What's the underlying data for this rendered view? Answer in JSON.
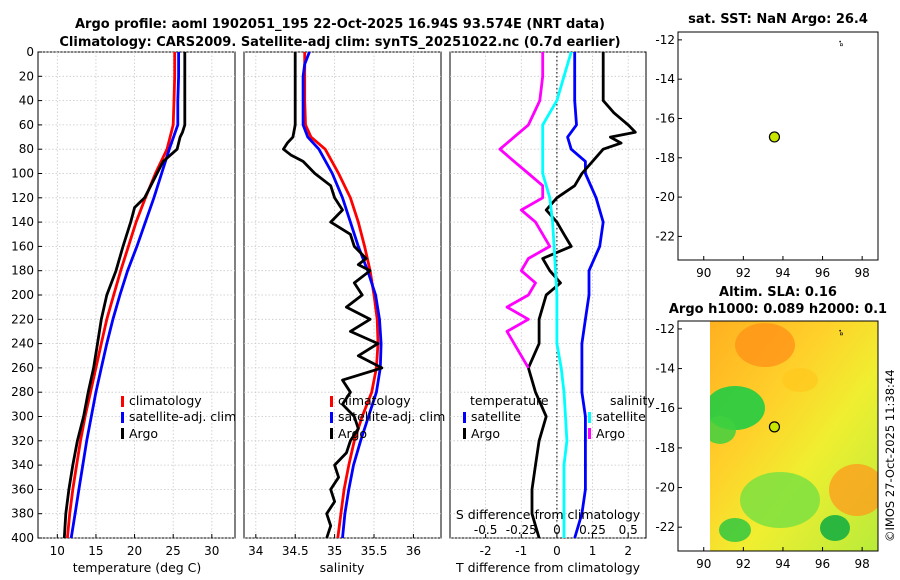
{
  "header": {
    "line1": "Argo profile: aoml 1902051_195 22-Oct-2025 16.94S 93.574E (NRT data)",
    "line2": "Climatology: CARS2009. Satellite-adj clim: synTS_20251022.nc (0.7d earlier)"
  },
  "colors": {
    "climatology": "#ff0000",
    "satellite": "#0000ff",
    "argo": "#000000",
    "sat_salinity": "#00ffff",
    "argo_salinity": "#ff00ff",
    "marker": "#c8e600"
  },
  "chart_data": [
    {
      "type": "line",
      "id": "temperature",
      "xlabel": "temperature (deg C)",
      "ylabel": "",
      "xlim": [
        7.5,
        33
      ],
      "ylim": [
        400,
        0
      ],
      "xticks": [
        "10",
        "15",
        "20",
        "25",
        "30"
      ],
      "xtick_values": [
        10,
        15,
        20,
        25,
        30
      ],
      "yticks": [
        "0",
        "20",
        "40",
        "60",
        "80",
        "100",
        "120",
        "140",
        "160",
        "180",
        "200",
        "220",
        "240",
        "260",
        "280",
        "300",
        "320",
        "340",
        "360",
        "380",
        "400"
      ],
      "ytick_values": [
        0,
        20,
        40,
        60,
        80,
        100,
        120,
        140,
        160,
        180,
        200,
        220,
        240,
        260,
        280,
        300,
        320,
        340,
        360,
        380,
        400
      ],
      "legend": [
        "climatology",
        "satellite-adj. clim",
        "Argo"
      ],
      "series": [
        {
          "name": "climatology",
          "color": "#ff0000",
          "depth": [
            0,
            20,
            40,
            60,
            80,
            100,
            120,
            140,
            160,
            180,
            200,
            220,
            240,
            260,
            280,
            300,
            320,
            340,
            360,
            380,
            400
          ],
          "values": [
            25.2,
            25.2,
            25.1,
            25.0,
            24.2,
            22.7,
            21.4,
            20.2,
            19.2,
            18.2,
            17.3,
            16.4,
            15.7,
            15.0,
            14.3,
            13.6,
            13.0,
            12.5,
            12.0,
            11.6,
            11.3
          ]
        },
        {
          "name": "satellite-adj. clim",
          "color": "#0000ff",
          "depth": [
            0,
            20,
            40,
            60,
            80,
            100,
            120,
            140,
            160,
            180,
            200,
            220,
            240,
            260,
            280,
            300,
            320,
            340,
            360,
            380,
            400
          ],
          "values": [
            25.7,
            25.7,
            25.6,
            25.6,
            24.5,
            23.5,
            22.5,
            21.4,
            20.3,
            19.1,
            18.1,
            17.2,
            16.4,
            15.7,
            15.0,
            14.4,
            13.8,
            13.3,
            12.8,
            12.3,
            11.8
          ]
        },
        {
          "name": "Argo",
          "color": "#000000",
          "depth": [
            0,
            20,
            40,
            60,
            66,
            70,
            80,
            90,
            100,
            110,
            120,
            128,
            140,
            160,
            180,
            200,
            220,
            240,
            260,
            280,
            300,
            320,
            340,
            360,
            380,
            400
          ],
          "values": [
            26.5,
            26.5,
            26.5,
            26.5,
            26.2,
            25.9,
            25.5,
            23.7,
            22.9,
            22.1,
            21.3,
            20.0,
            19.5,
            18.5,
            17.6,
            16.4,
            15.7,
            15.2,
            14.7,
            14.0,
            13.4,
            12.6,
            12.0,
            11.5,
            11.1,
            10.9
          ]
        }
      ]
    },
    {
      "type": "line",
      "id": "salinity",
      "xlabel": "salinity",
      "ylabel": "",
      "xlim": [
        33.85,
        36.35
      ],
      "ylim": [
        400,
        0
      ],
      "xticks": [
        "34",
        "34.5",
        "35",
        "35.5",
        "36"
      ],
      "xtick_values": [
        34,
        34.5,
        35,
        35.5,
        36
      ],
      "legend": [
        "climatology",
        "satellite-adj. clim",
        "Argo"
      ],
      "series": [
        {
          "name": "climatology",
          "color": "#ff0000",
          "depth": [
            0,
            20,
            40,
            60,
            70,
            80,
            100,
            120,
            140,
            160,
            180,
            200,
            220,
            240,
            260,
            280,
            300,
            320,
            340,
            360,
            380,
            400
          ],
          "values": [
            34.62,
            34.62,
            34.62,
            34.63,
            34.7,
            34.88,
            35.05,
            35.2,
            35.3,
            35.38,
            35.45,
            35.5,
            35.54,
            35.55,
            35.53,
            35.47,
            35.35,
            35.25,
            35.18,
            35.12,
            35.08,
            35.04
          ]
        },
        {
          "name": "satellite-adj. clim",
          "color": "#0000ff",
          "depth": [
            0,
            10,
            20,
            40,
            60,
            70,
            80,
            100,
            120,
            140,
            160,
            180,
            200,
            220,
            240,
            260,
            280,
            300,
            320,
            340,
            360,
            380,
            400
          ],
          "values": [
            34.68,
            34.62,
            34.6,
            34.6,
            34.6,
            34.66,
            34.8,
            34.97,
            35.1,
            35.2,
            35.3,
            35.42,
            35.52,
            35.57,
            35.59,
            35.58,
            35.53,
            35.43,
            35.33,
            35.24,
            35.18,
            35.13,
            35.1
          ]
        },
        {
          "name": "Argo",
          "color": "#000000",
          "depth": [
            0,
            20,
            40,
            60,
            70,
            75,
            80,
            85,
            90,
            100,
            110,
            120,
            130,
            140,
            150,
            160,
            170,
            175,
            180,
            190,
            200,
            210,
            220,
            230,
            240,
            250,
            260,
            270,
            280,
            290,
            300,
            310,
            320,
            330,
            340,
            350,
            360,
            370,
            380,
            390,
            400
          ],
          "values": [
            34.5,
            34.5,
            34.5,
            34.5,
            34.47,
            34.4,
            34.35,
            34.45,
            34.6,
            34.75,
            34.95,
            35.0,
            35.1,
            34.95,
            35.2,
            35.25,
            35.4,
            35.3,
            35.45,
            35.25,
            35.35,
            35.15,
            35.45,
            35.2,
            35.55,
            35.3,
            35.6,
            35.1,
            35.2,
            35.1,
            35.25,
            35.3,
            35.2,
            35.15,
            35.0,
            35.05,
            34.95,
            35.0,
            34.9,
            34.95,
            34.9
          ]
        }
      ]
    },
    {
      "type": "line",
      "id": "difference",
      "xlabel": "T difference from climatology",
      "xlabel_top": "S difference from climatology",
      "xlim": [
        -3,
        2.5
      ],
      "ylim": [
        400,
        0
      ],
      "xticks": [
        "-2",
        "-1",
        "0",
        "1",
        "2"
      ],
      "xtick_values": [
        -2,
        -1,
        0,
        1,
        2
      ],
      "xticks_salinity": [
        "-0.5",
        "-0.25",
        "0",
        "0.25",
        "0.5"
      ],
      "legend_temperature_title": "temperature",
      "legend_salinity_title": "salinity",
      "legend": [
        "satellite",
        "Argo",
        "satellite",
        "Argo"
      ],
      "series": [
        {
          "name": "temperature satellite",
          "color": "#0000ff",
          "depth": [
            0,
            20,
            40,
            60,
            70,
            80,
            90,
            100,
            120,
            140,
            160,
            180,
            200,
            220,
            240,
            260,
            280,
            300,
            320,
            340,
            360,
            380,
            400
          ],
          "values": [
            0.5,
            0.5,
            0.5,
            0.55,
            0.3,
            0.4,
            0.8,
            0.8,
            1.1,
            1.3,
            1.2,
            0.9,
            0.9,
            0.8,
            0.7,
            0.7,
            0.7,
            0.8,
            0.8,
            0.8,
            0.8,
            0.7,
            0.5
          ]
        },
        {
          "name": "temperature Argo",
          "color": "#000000",
          "depth": [
            0,
            20,
            40,
            50,
            60,
            66,
            70,
            75,
            80,
            90,
            100,
            110,
            120,
            130,
            140,
            150,
            160,
            170,
            180,
            190,
            200,
            220,
            240,
            260,
            280,
            300,
            320,
            340,
            360,
            380,
            400
          ],
          "values": [
            1.3,
            1.3,
            1.3,
            1.6,
            2.0,
            2.2,
            1.5,
            1.8,
            1.3,
            1.0,
            0.7,
            0.5,
            0.0,
            -0.3,
            0.0,
            0.2,
            0.4,
            -0.4,
            -0.2,
            0.1,
            -0.3,
            -0.5,
            -0.5,
            -0.8,
            -0.6,
            -0.3,
            -0.5,
            -0.6,
            -0.7,
            -0.7,
            -0.5
          ]
        },
        {
          "name": "salinity satellite",
          "color": "#00ffff",
          "depth": [
            0,
            20,
            40,
            60,
            80,
            100,
            120,
            140,
            160,
            180,
            200,
            220,
            240,
            260,
            280,
            300,
            320,
            340,
            360,
            380,
            400
          ],
          "values": [
            0.1,
            0.05,
            0.0,
            -0.1,
            -0.1,
            -0.1,
            -0.05,
            -0.03,
            -0.02,
            -0.01,
            0.0,
            0.0,
            0.0,
            0.03,
            0.05,
            0.06,
            0.07,
            0.05,
            0.05,
            0.05,
            0.05
          ]
        },
        {
          "name": "salinity Argo",
          "color": "#ff00ff",
          "depth": [
            0,
            20,
            40,
            60,
            70,
            80,
            90,
            100,
            110,
            120,
            130,
            140,
            150,
            160,
            170,
            180,
            190,
            200,
            210,
            220,
            230,
            240,
            250,
            260
          ],
          "values": [
            -0.1,
            -0.1,
            -0.12,
            -0.2,
            -0.3,
            -0.4,
            -0.3,
            -0.2,
            -0.1,
            -0.1,
            -0.25,
            -0.15,
            -0.1,
            -0.05,
            -0.2,
            -0.25,
            -0.15,
            -0.2,
            -0.35,
            -0.2,
            -0.35,
            -0.3,
            -0.25,
            -0.2
          ]
        }
      ]
    },
    {
      "type": "scatter",
      "id": "sst_map",
      "title": "sat. SST: NaN Argo: 26.4",
      "xlim": [
        88.7,
        98.8
      ],
      "ylim": [
        -23.2,
        -11.6
      ],
      "xticks": [
        "90",
        "92",
        "94",
        "96",
        "98"
      ],
      "xtick_values": [
        90,
        92,
        94,
        96,
        98
      ],
      "yticks": [
        "-12",
        "-14",
        "-16",
        "-18",
        "-20",
        "-22"
      ],
      "ytick_values": [
        -12,
        -14,
        -16,
        -18,
        -20,
        -22
      ],
      "points": [
        {
          "name": "Argo float",
          "x": 93.57,
          "y": -16.94
        }
      ]
    },
    {
      "type": "heatmap",
      "id": "sla_map",
      "title": "Altim. SLA: 0.16",
      "subtitle": "Argo h1000: 0.089 h2000: 0.1",
      "xlim": [
        88.7,
        98.8
      ],
      "ylim": [
        -23.2,
        -11.6
      ],
      "xticks": [
        "90",
        "92",
        "94",
        "96",
        "98"
      ],
      "xtick_values": [
        90,
        92,
        94,
        96,
        98
      ],
      "yticks": [
        "-12",
        "-14",
        "-16",
        "-18",
        "-20",
        "-22"
      ],
      "ytick_values": [
        -12,
        -14,
        -16,
        -18,
        -20,
        -22
      ],
      "points": [
        {
          "name": "Argo float",
          "x": 93.57,
          "y": -16.94
        }
      ]
    }
  ],
  "watermark": "©IMOS 27-Oct-2025 11:38:44"
}
